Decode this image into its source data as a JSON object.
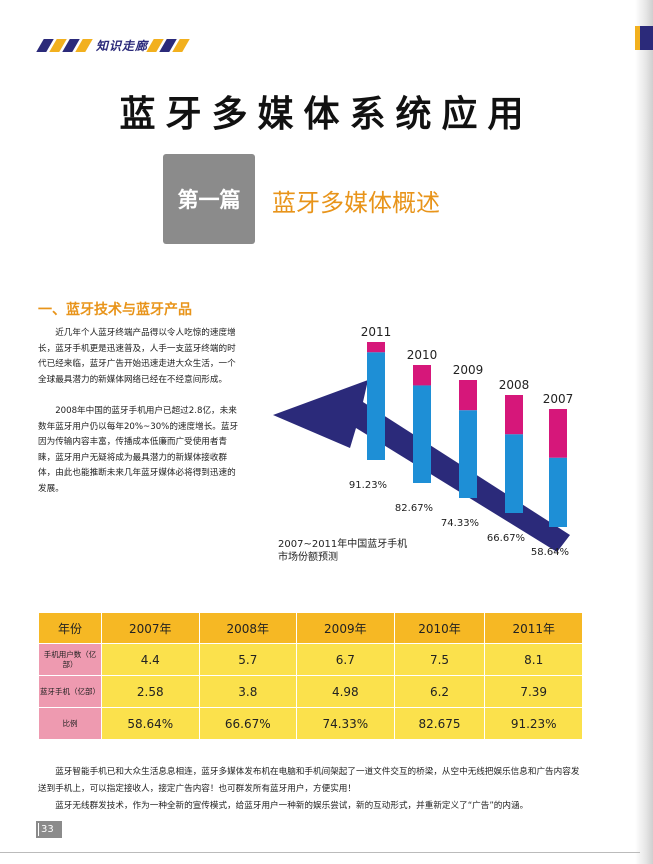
{
  "header": {
    "section_tag": "知识走廊"
  },
  "title": "蓝牙多媒体系统应用",
  "part": {
    "label": "第一篇",
    "title": "蓝牙多媒体概述"
  },
  "section1": {
    "heading": "一、蓝牙技术与蓝牙产品",
    "paragraphs": [
      "近几年个人蓝牙终端产品得以令人吃惊的速度增长，蓝牙手机更是迅速普及，人手一支蓝牙终端的时代已经来临，蓝牙广告开始迅速走进大众生活，一个全球最具潜力的新媒体网络已经在不经意间形成。",
      "2008年中国的蓝牙手机用户已超过2.8亿，未来数年蓝牙用户仍以每年20%~30%的速度增长。蓝牙因为传输内容丰富，传播成本低廉而广受使用者青睐，蓝牙用户无疑将成为最具潜力的新媒体接收群体，由此也能推断未来几年蓝牙媒体必将得到迅速的发展。"
    ]
  },
  "chart_data": {
    "type": "bar",
    "title": "2007~2011年中国蓝牙手机市场份额预测",
    "categories": [
      "2011",
      "2010",
      "2009",
      "2008",
      "2007"
    ],
    "series": [
      {
        "name": "",
        "values": [
          91.23,
          82.67,
          74.33,
          66.67,
          58.64
        ]
      }
    ],
    "value_labels": [
      "91.23%",
      "82.67%",
      "74.33%",
      "66.67%",
      "58.64%"
    ],
    "colors": {
      "bar": "#1e8fd6",
      "remainder": "#d6177a",
      "arrow": "#2b2a7a"
    }
  },
  "table": {
    "headers": [
      "年份",
      "2007年",
      "2008年",
      "2009年",
      "2010年",
      "2011年"
    ],
    "rows": [
      {
        "label": "手机用户数（亿部）",
        "values": [
          "4.4",
          "5.7",
          "6.7",
          "7.5",
          "8.1"
        ]
      },
      {
        "label": "蓝牙手机（亿部）",
        "values": [
          "2.58",
          "3.8",
          "4.98",
          "6.2",
          "7.39"
        ]
      },
      {
        "label": "比例",
        "values": [
          "58.64%",
          "66.67%",
          "74.33%",
          "82.675",
          "91.23%"
        ]
      }
    ]
  },
  "footer_paragraphs": [
    "蓝牙智能手机已和大众生活息息相连，蓝牙多媒体发布机在电脑和手机间架起了一道文件交互的桥梁，从空中无线把娱乐信息和广告内容发送到手机上，可以指定接收人，接定广告内容！也可群发所有蓝牙用户，方便实用！",
    "蓝牙无线群发技术，作为一种全新的宣传模式，给蓝牙用户一种新的娱乐尝试，新的互动形式，并重新定义了“广告”的内涵。"
  ],
  "page_number": "33"
}
